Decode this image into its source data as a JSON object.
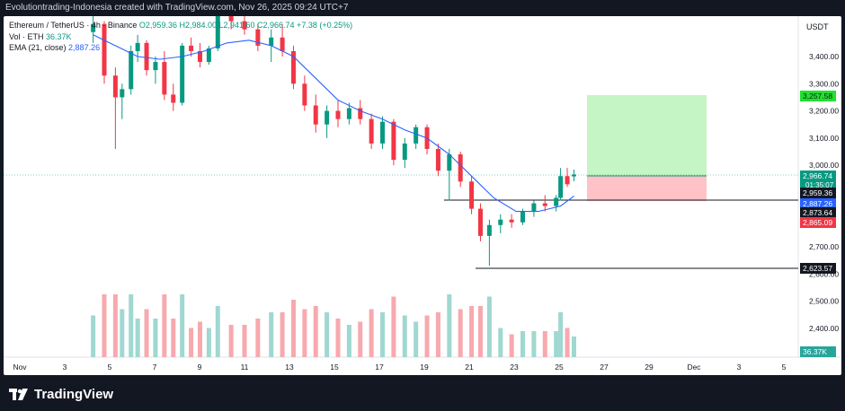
{
  "header": {
    "caption": "Evolutiontrading-Indonesia created with TradingView.com, Nov 26, 2025 09:24 UTC+7"
  },
  "legend": {
    "symbol_line": "Ethereum / TetherUS · 4h · Binance",
    "ohlc": "O2,959.36 H2,984.00 L2,941.60 C2,966.74 +7.38 (+0.25%)",
    "vol_label": "Vol · ETH",
    "vol_value": "36.37K",
    "ema_label": "EMA (21, close)",
    "ema_value": "2,887.26"
  },
  "price_axis": {
    "unit": "USDT",
    "ticks": [
      "3,400.00",
      "3,300.00",
      "3,200.00",
      "3,100.00",
      "3,000.00",
      "2,700.00",
      "2,600.00",
      "2,500.00",
      "2,400.00"
    ],
    "labels": {
      "target": "3,257.58",
      "last_price": "2,966.74",
      "countdown": "01:35:07",
      "entry": "2,959.36",
      "ema": "2,887.26",
      "level_a": "2,873.64",
      "stop": "2,865.09",
      "low": "2,623.57",
      "volume": "36.37K"
    }
  },
  "time_axis": {
    "ticks": [
      "Nov",
      "3",
      "5",
      "7",
      "9",
      "11",
      "13",
      "15",
      "17",
      "19",
      "21",
      "23",
      "25",
      "27",
      "29",
      "Dec",
      "3",
      "5"
    ]
  },
  "brand": {
    "name": "TradingView"
  },
  "colors": {
    "up": "#089981",
    "down": "#f23645",
    "ema": "#2962ff",
    "target_zone": "#b2f2b2",
    "stop_zone": "#ffb3b8"
  },
  "chart_data": {
    "type": "candlestick",
    "title": "Ethereum / TetherUS · 4h · Binance",
    "ylim": [
      2300,
      3550
    ],
    "x_range_days": [
      0.3,
      36.0
    ],
    "series": [
      {
        "name": "EMA (21, close)",
        "points": [
          [
            4,
            3480
          ],
          [
            5,
            3440
          ],
          [
            6,
            3400
          ],
          [
            7,
            3390
          ],
          [
            8,
            3400
          ],
          [
            9,
            3420
          ],
          [
            10,
            3450
          ],
          [
            11,
            3460
          ],
          [
            12,
            3440
          ],
          [
            13,
            3400
          ],
          [
            14,
            3320
          ],
          [
            15,
            3240
          ],
          [
            16,
            3200
          ],
          [
            17,
            3170
          ],
          [
            18,
            3130
          ],
          [
            19,
            3100
          ],
          [
            20,
            3040
          ],
          [
            21,
            2960
          ],
          [
            22,
            2880
          ],
          [
            23,
            2830
          ],
          [
            24,
            2830
          ],
          [
            25,
            2850
          ],
          [
            25.6,
            2887
          ]
        ]
      }
    ],
    "candles": [
      [
        4.0,
        3490,
        3560,
        3450,
        3520
      ],
      [
        4.5,
        3520,
        3530,
        3300,
        3330
      ],
      [
        5.0,
        3330,
        3360,
        3060,
        3250
      ],
      [
        5.3,
        3250,
        3300,
        3170,
        3280
      ],
      [
        5.7,
        3280,
        3440,
        3260,
        3420
      ],
      [
        6.0,
        3420,
        3480,
        3380,
        3450
      ],
      [
        6.4,
        3450,
        3460,
        3330,
        3350
      ],
      [
        6.8,
        3350,
        3400,
        3300,
        3380
      ],
      [
        7.2,
        3380,
        3420,
        3240,
        3260
      ],
      [
        7.6,
        3260,
        3300,
        3200,
        3230
      ],
      [
        8.0,
        3230,
        3450,
        3220,
        3440
      ],
      [
        8.4,
        3440,
        3470,
        3400,
        3420
      ],
      [
        8.8,
        3420,
        3450,
        3360,
        3380
      ],
      [
        9.2,
        3380,
        3440,
        3370,
        3430
      ],
      [
        9.6,
        3430,
        3560,
        3420,
        3550
      ],
      [
        10.2,
        3550,
        3580,
        3500,
        3530
      ],
      [
        10.8,
        3530,
        3560,
        3480,
        3500
      ],
      [
        11.4,
        3500,
        3520,
        3420,
        3440
      ],
      [
        12.0,
        3440,
        3500,
        3380,
        3470
      ],
      [
        12.5,
        3470,
        3520,
        3400,
        3420
      ],
      [
        13.0,
        3420,
        3440,
        3280,
        3300
      ],
      [
        13.5,
        3300,
        3330,
        3200,
        3220
      ],
      [
        14.0,
        3220,
        3260,
        3120,
        3150
      ],
      [
        14.5,
        3150,
        3220,
        3100,
        3200
      ],
      [
        15.0,
        3200,
        3240,
        3140,
        3170
      ],
      [
        15.5,
        3170,
        3230,
        3150,
        3210
      ],
      [
        16.0,
        3210,
        3240,
        3150,
        3170
      ],
      [
        16.5,
        3170,
        3190,
        3060,
        3080
      ],
      [
        17.0,
        3080,
        3180,
        3060,
        3160
      ],
      [
        17.5,
        3160,
        3170,
        3000,
        3020
      ],
      [
        18.0,
        3020,
        3100,
        2990,
        3080
      ],
      [
        18.5,
        3080,
        3150,
        3060,
        3140
      ],
      [
        19.0,
        3140,
        3150,
        3040,
        3060
      ],
      [
        19.5,
        3060,
        3080,
        2960,
        2980
      ],
      [
        20.0,
        2980,
        3060,
        2870,
        3040
      ],
      [
        20.5,
        3040,
        3050,
        2920,
        2940
      ],
      [
        21.0,
        2940,
        2960,
        2820,
        2840
      ],
      [
        21.4,
        2840,
        2860,
        2720,
        2740
      ],
      [
        21.8,
        2740,
        2800,
        2630,
        2780
      ],
      [
        22.3,
        2780,
        2820,
        2750,
        2800
      ],
      [
        22.8,
        2800,
        2820,
        2770,
        2790
      ],
      [
        23.3,
        2790,
        2840,
        2780,
        2830
      ],
      [
        23.8,
        2830,
        2870,
        2810,
        2860
      ],
      [
        24.3,
        2860,
        2890,
        2830,
        2850
      ],
      [
        24.8,
        2850,
        2890,
        2830,
        2880
      ],
      [
        25.0,
        2880,
        2990,
        2870,
        2960
      ],
      [
        25.3,
        2960,
        2990,
        2920,
        2930
      ],
      [
        25.6,
        2959,
        2984,
        2941,
        2966
      ]
    ]
  }
}
